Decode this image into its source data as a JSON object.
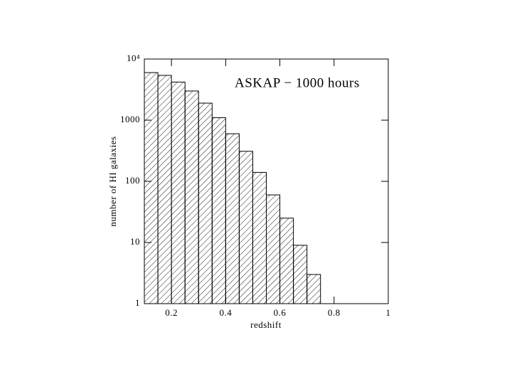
{
  "chart_data": {
    "type": "histogram",
    "annotation": "ASKAP − 1000 hours",
    "xlabel": "redshift",
    "ylabel": "number of HI galaxies",
    "bins": [
      0.1,
      0.15,
      0.2,
      0.25,
      0.3,
      0.35,
      0.4,
      0.45,
      0.5,
      0.55,
      0.6,
      0.65,
      0.7,
      0.75
    ],
    "values": [
      6000,
      5400,
      4200,
      3000,
      1900,
      1100,
      600,
      310,
      140,
      60,
      25,
      9,
      3
    ],
    "color": "#000000",
    "xlim": [
      0.1,
      1
    ],
    "xticks": [
      0.2,
      0.4,
      0.6,
      0.8,
      1
    ],
    "ylim": [
      1,
      10000
    ],
    "yticks": [
      1,
      10,
      100,
      1000,
      {
        "value": 10000,
        "label": "10⁴"
      }
    ],
    "ylog": true
  }
}
